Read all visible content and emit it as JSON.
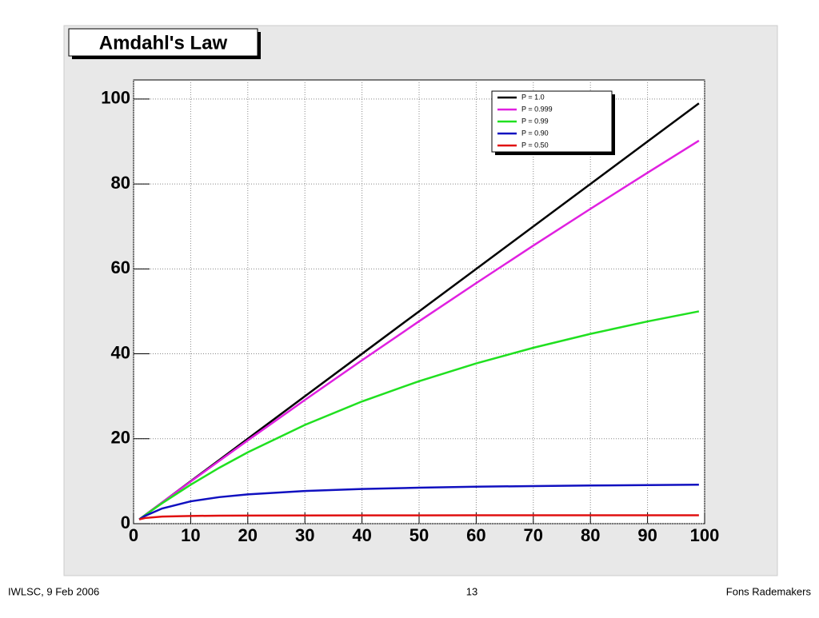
{
  "chart_data": {
    "type": "line",
    "title": "Amdahl's Law",
    "x": [
      1,
      2,
      5,
      10,
      15,
      20,
      30,
      40,
      50,
      60,
      70,
      80,
      90,
      99
    ],
    "series": [
      {
        "name": "P = 1.0",
        "color": "#000000",
        "values": [
          1,
          2,
          5,
          10,
          15,
          20,
          30,
          40,
          50,
          60,
          70,
          80,
          90,
          99
        ]
      },
      {
        "name": "P = 0.999",
        "color": "#e020e0",
        "values": [
          1,
          1.998,
          4.98,
          9.91,
          14.79,
          19.62,
          29.13,
          38.48,
          47.67,
          56.65,
          65.49,
          74.14,
          82.64,
          90.2
        ]
      },
      {
        "name": "P = 0.99",
        "color": "#20e020",
        "values": [
          1,
          1.98,
          4.81,
          9.17,
          13.16,
          16.81,
          23.26,
          28.78,
          33.56,
          37.74,
          41.42,
          44.69,
          47.62,
          50.0
        ]
      },
      {
        "name": "P = 0.90",
        "color": "#1010c0",
        "values": [
          1,
          1.82,
          3.57,
          5.26,
          6.25,
          6.9,
          7.69,
          8.16,
          8.47,
          8.7,
          8.86,
          8.99,
          9.09,
          9.17
        ]
      },
      {
        "name": "P = 0.50",
        "color": "#e01010",
        "values": [
          1,
          1.33,
          1.67,
          1.82,
          1.88,
          1.9,
          1.94,
          1.95,
          1.96,
          1.97,
          1.97,
          1.98,
          1.98,
          1.98
        ]
      }
    ],
    "xlim": [
      0,
      100
    ],
    "ylim": [
      0,
      104.5
    ],
    "xticks": [
      0,
      10,
      20,
      30,
      40,
      50,
      60,
      70,
      80,
      90,
      100
    ],
    "yticks": [
      0,
      20,
      40,
      60,
      80,
      100
    ],
    "grid": true,
    "legend": "top-right"
  },
  "footer": {
    "left": "IWLSC, 9 Feb 2006",
    "center": "13",
    "right": "Fons Rademakers"
  }
}
